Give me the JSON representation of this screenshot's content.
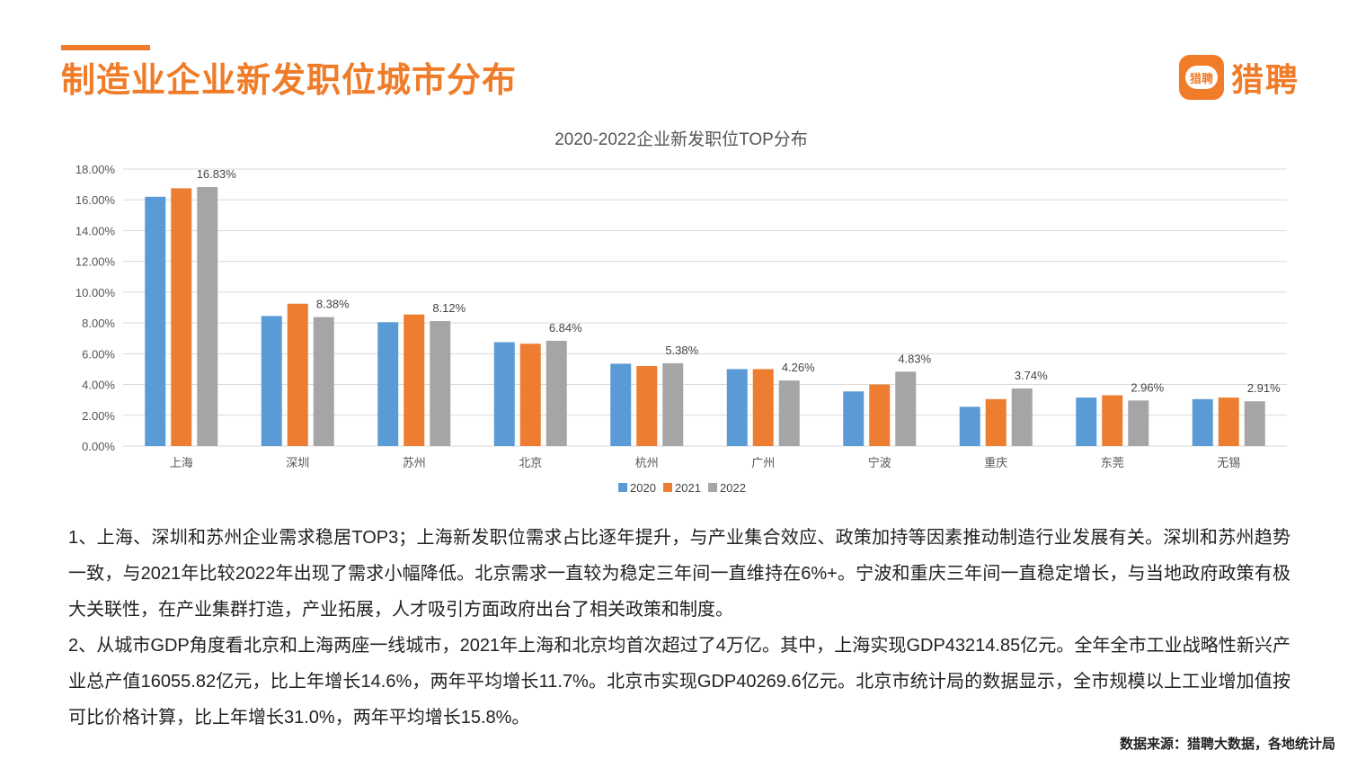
{
  "page": {
    "title": "制造业企业新发职位城市分布",
    "logo_text": "猎聘",
    "logo_badge_text": "猎聘"
  },
  "colors": {
    "accent": "#f07b28",
    "series_2020": "#5b9bd5",
    "series_2021": "#ed7d31",
    "series_2022": "#a5a5a5",
    "grid": "#d9d9d9"
  },
  "chart_data": {
    "type": "bar",
    "title": "2020-2022企业新发职位TOP分布",
    "categories": [
      "上海",
      "深圳",
      "苏州",
      "北京",
      "杭州",
      "广州",
      "宁波",
      "重庆",
      "东莞",
      "无锡"
    ],
    "series": [
      {
        "name": "2020",
        "values": [
          16.2,
          8.45,
          8.05,
          6.75,
          5.35,
          5.0,
          3.55,
          2.55,
          3.15,
          3.05
        ]
      },
      {
        "name": "2021",
        "values": [
          16.75,
          9.25,
          8.55,
          6.65,
          5.2,
          5.0,
          4.0,
          3.05,
          3.3,
          3.15
        ]
      },
      {
        "name": "2022",
        "values": [
          16.83,
          8.38,
          8.12,
          6.84,
          5.38,
          4.26,
          4.83,
          3.74,
          2.96,
          2.91
        ]
      }
    ],
    "data_labels": [
      "16.83%",
      "8.38%",
      "8.12%",
      "6.84%",
      "5.38%",
      "4.26%",
      "4.83%",
      "3.74%",
      "2.96%",
      "2.91%"
    ],
    "y_ticks": [
      "0.00%",
      "2.00%",
      "4.00%",
      "6.00%",
      "8.00%",
      "10.00%",
      "12.00%",
      "14.00%",
      "16.00%",
      "18.00%"
    ],
    "ylim": [
      0,
      18
    ],
    "grid": true,
    "legend": "bottom"
  },
  "paragraphs": [
    "1、上海、深圳和苏州企业需求稳居TOP3；上海新发职位需求占比逐年提升，与产业集合效应、政策加持等因素推动制造行业发展有关。深圳和苏州趋势一致，与2021年比较2022年出现了需求小幅降低。北京需求一直较为稳定三年间一直维持在6%+。宁波和重庆三年间一直稳定增长，与当地政府政策有极大关联性，在产业集群打造，产业拓展，人才吸引方面政府出台了相关政策和制度。",
    "2、从城市GDP角度看北京和上海两座一线城市，2021年上海和北京均首次超过了4万亿。其中，上海实现GDP43214.85亿元。全年全市工业战略性新兴产业总产值16055.82亿元，比上年增长14.6%，两年平均增长11.7%。北京市实现GDP40269.6亿元。北京市统计局的数据显示，全市规模以上工业增加值按可比价格计算，比上年增长31.0%，两年平均增长15.8%。"
  ],
  "source": "数据来源：猎聘大数据，各地统计局"
}
